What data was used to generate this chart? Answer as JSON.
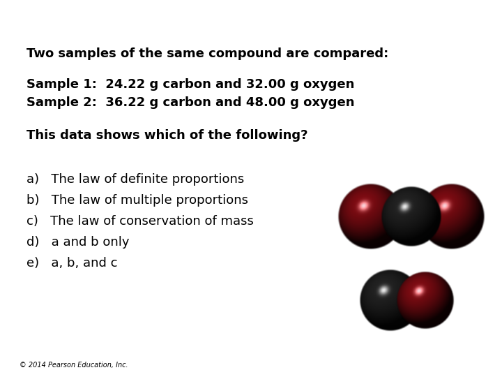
{
  "background_color": "#ffffff",
  "title_line": "Two samples of the same compound are compared:",
  "sample1": "Sample 1:  24.22 g carbon and 32.00 g oxygen",
  "sample2": "Sample 2:  36.22 g carbon and 48.00 g oxygen",
  "question": "This data shows which of the following?",
  "options": [
    "a)   The law of definite proportions",
    "b)   The law of multiple proportions",
    "c)   The law of conservation of mass",
    "d)   a and b only",
    "e)   a, b, and c"
  ],
  "footer": "© 2014 Pearson Education, Inc.",
  "title_fontsize": 13,
  "sample_fontsize": 13,
  "question_fontsize": 13,
  "option_fontsize": 13,
  "footer_fontsize": 7,
  "text_color": "#000000"
}
